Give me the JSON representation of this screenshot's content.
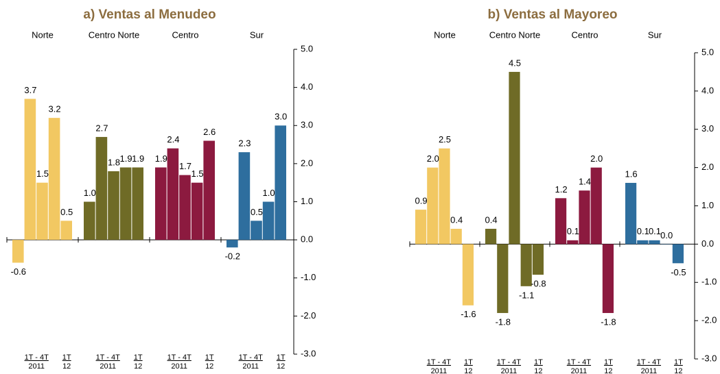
{
  "chart_data": [
    {
      "type": "bar",
      "title": "a) Ventas al Menudeo",
      "period_labels": {
        "range": "1T  -  4T",
        "range_year": "2011",
        "last": "1T",
        "last_year": "12"
      },
      "groups": [
        {
          "name": "Norte",
          "color": "#f2c862",
          "values": [
            -0.6,
            3.7,
            1.5,
            3.2,
            0.5
          ],
          "value_labels": [
            "-0.6",
            "3.7",
            "1.5",
            "3.2",
            "0.5"
          ]
        },
        {
          "name": "Centro Norte",
          "color": "#6f6b26",
          "values": [
            1.0,
            2.7,
            1.8,
            1.9,
            1.9
          ],
          "value_labels": [
            "1.0",
            "2.7",
            "1.8",
            "1.9",
            "1.9"
          ]
        },
        {
          "name": "Centro",
          "color": "#8c1a3f",
          "values": [
            1.9,
            2.4,
            1.7,
            1.5,
            2.6
          ],
          "value_labels": [
            "1.9",
            "2.4",
            "1.7",
            "1.5",
            "2.6"
          ]
        },
        {
          "name": "Sur",
          "color": "#2e6e9e",
          "values": [
            -0.2,
            2.3,
            0.5,
            1.0,
            3.0
          ],
          "value_labels": [
            "-0.2",
            "2.3",
            "0.5",
            "1.0",
            "3.0"
          ]
        }
      ],
      "ylim": [
        -3,
        5
      ],
      "yticks": [
        {
          "value": -3,
          "label": "-3.0"
        },
        {
          "value": -2,
          "label": "-2.0"
        },
        {
          "value": -1,
          "label": "-1.0"
        },
        {
          "value": 0,
          "label": "0.0"
        },
        {
          "value": 1,
          "label": "1.0"
        },
        {
          "value": 2,
          "label": "2.0"
        },
        {
          "value": 3,
          "label": "3.0"
        },
        {
          "value": 4,
          "label": "4.0"
        },
        {
          "value": 5,
          "label": "5.0"
        }
      ]
    },
    {
      "type": "bar",
      "title": "b) Ventas al Mayoreo",
      "period_labels": {
        "range": "1T  -  4T",
        "range_year": "2011",
        "last": "1T",
        "last_year": "12"
      },
      "groups": [
        {
          "name": "Norte",
          "color": "#f2c862",
          "values": [
            0.9,
            2.0,
            2.5,
            0.4,
            -1.6
          ],
          "value_labels": [
            "0.9",
            "2.0",
            "2.5",
            "0.4",
            "-1.6"
          ]
        },
        {
          "name": "Centro Norte",
          "color": "#6f6b26",
          "values": [
            0.4,
            -1.8,
            4.5,
            -1.1,
            -0.8
          ],
          "value_labels": [
            "0.4",
            "-1.8",
            "4.5",
            "-1.1",
            "-0.8"
          ]
        },
        {
          "name": "Centro",
          "color": "#8c1a3f",
          "values": [
            1.2,
            0.1,
            1.4,
            2.0,
            -1.8
          ],
          "value_labels": [
            "1.2",
            "0.1",
            "1.4",
            "2.0",
            "-1.8"
          ]
        },
        {
          "name": "Sur",
          "color": "#2e6e9e",
          "values": [
            1.6,
            0.1,
            0.1,
            0.0,
            -0.5
          ],
          "value_labels": [
            "1.6",
            "0.1",
            "0.1",
            "0.0",
            "-0.5"
          ]
        }
      ],
      "ylim": [
        -3,
        5
      ],
      "yticks": [
        {
          "value": -3,
          "label": "-3.0"
        },
        {
          "value": -2,
          "label": "-2.0"
        },
        {
          "value": -1,
          "label": "-1.0"
        },
        {
          "value": 0,
          "label": "0.0"
        },
        {
          "value": 1,
          "label": "1.0"
        },
        {
          "value": 2,
          "label": "2.0"
        },
        {
          "value": 3,
          "label": "3.0"
        },
        {
          "value": 4,
          "label": "4.0"
        },
        {
          "value": 5,
          "label": "5.0"
        }
      ]
    }
  ]
}
